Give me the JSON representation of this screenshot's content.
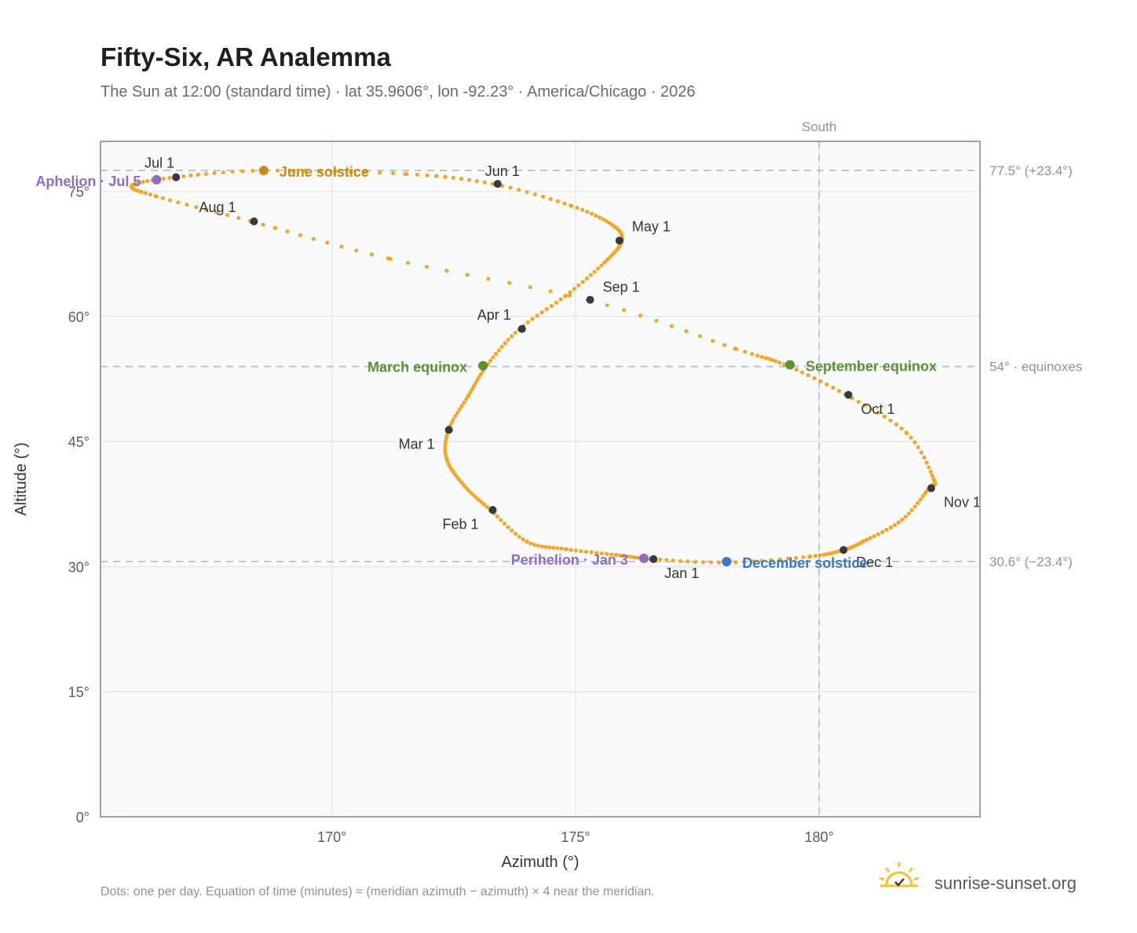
{
  "chart_data": {
    "type": "scatter",
    "title": "Fifty-Six, AR Analemma",
    "subtitle": "The Sun at 12:00 (standard time) · lat 35.9606°, lon -92.23° · America/Chicago · 2026",
    "xlabel": "Azimuth (°)",
    "ylabel": "Altitude (°)",
    "xlim": [
      165.25,
      183.3
    ],
    "ylim": [
      0,
      81
    ],
    "x_ticks": [
      170,
      175,
      180
    ],
    "x_tick_labels": [
      "170°",
      "175°",
      "180°"
    ],
    "y_ticks": [
      0,
      15,
      30,
      45,
      60,
      75
    ],
    "y_tick_labels": [
      "0°",
      "15°",
      "30°",
      "45°",
      "60°",
      "75°"
    ],
    "grid": true,
    "south_line": {
      "azimuth": 180,
      "label": "South"
    },
    "reference_lines": [
      {
        "altitude": 77.5,
        "label": "77.5° (+23.4°)"
      },
      {
        "altitude": 54.0,
        "label": "54° · equinoxes"
      },
      {
        "altitude": 30.6,
        "label": "30.6° (−23.4°)"
      }
    ],
    "series": [
      {
        "color": "#f2a62a",
        "points": [
          [
            176.6,
            30.9
          ],
          [
            175.83,
            31.4
          ],
          [
            174.8,
            32.1
          ],
          [
            174.0,
            33.0
          ],
          [
            173.25,
            36.8
          ],
          [
            172.7,
            39.8
          ],
          [
            172.35,
            43.0
          ],
          [
            172.4,
            46.5
          ],
          [
            172.8,
            50.5
          ],
          [
            173.2,
            54.3
          ],
          [
            173.85,
            58.5
          ],
          [
            174.8,
            62.5
          ],
          [
            175.6,
            66.5
          ],
          [
            175.95,
            69.1
          ],
          [
            175.75,
            71.0
          ],
          [
            174.9,
            73.3
          ],
          [
            173.3,
            75.9
          ],
          [
            171.5,
            77.1
          ],
          [
            168.6,
            77.5
          ],
          [
            166.8,
            76.7
          ],
          [
            165.9,
            75.7
          ],
          [
            166.4,
            74.4
          ],
          [
            168.35,
            71.4
          ],
          [
            171.2,
            66.9
          ],
          [
            175.3,
            61.9
          ],
          [
            178.3,
            56.1
          ],
          [
            179.3,
            54.2
          ],
          [
            180.55,
            50.6
          ],
          [
            181.8,
            46.0
          ],
          [
            182.35,
            40.5
          ],
          [
            182.25,
            39.4
          ],
          [
            181.7,
            35.6
          ],
          [
            180.9,
            33.0
          ],
          [
            180.5,
            32.0
          ],
          [
            179.8,
            31.2
          ],
          [
            178.1,
            30.5
          ],
          [
            176.6,
            30.9
          ]
        ]
      }
    ],
    "month_markers": [
      {
        "label": "Jan 1",
        "az": 176.6,
        "alt": 30.9
      },
      {
        "label": "Feb 1",
        "az": 173.3,
        "alt": 36.8
      },
      {
        "label": "Mar 1",
        "az": 172.4,
        "alt": 46.4
      },
      {
        "label": "Apr 1",
        "az": 173.9,
        "alt": 58.5
      },
      {
        "label": "May 1",
        "az": 175.9,
        "alt": 69.1
      },
      {
        "label": "Jun 1",
        "az": 173.4,
        "alt": 75.9
      },
      {
        "label": "Jul 1",
        "az": 166.8,
        "alt": 76.7
      },
      {
        "label": "Aug 1",
        "az": 168.4,
        "alt": 71.4
      },
      {
        "label": "Sep 1",
        "az": 175.3,
        "alt": 62.0
      },
      {
        "label": "Oct 1",
        "az": 180.6,
        "alt": 50.6
      },
      {
        "label": "Nov 1",
        "az": 182.3,
        "alt": 39.4
      },
      {
        "label": "Dec 1",
        "az": 180.5,
        "alt": 32.0
      }
    ],
    "events": [
      {
        "label": "June solstice",
        "az": 168.6,
        "alt": 77.5,
        "color": "#c98b0c"
      },
      {
        "label": "Aphelion · Jul 5",
        "az": 166.4,
        "alt": 76.4,
        "color": "#8e6cc0"
      },
      {
        "label": "March equinox",
        "az": 173.1,
        "alt": 54.1,
        "color": "#5a9232"
      },
      {
        "label": "September equinox",
        "az": 179.4,
        "alt": 54.2,
        "color": "#5a9232"
      },
      {
        "label": "Perihelion · Jan 3",
        "az": 176.4,
        "alt": 31.0,
        "color": "#8e6cc0"
      },
      {
        "label": "December solstice",
        "az": 178.1,
        "alt": 30.6,
        "color": "#3a78c2"
      }
    ]
  },
  "footnote": "Dots: one per day. Equation of time (minutes) ≈ (meridian azimuth − azimuth) × 4 near the meridian.",
  "brand": {
    "name": "sunrise-sunset.org",
    "icon": "sun-logo-icon"
  },
  "colors": {
    "curve": "#f2a62a",
    "marker": "#333a44",
    "grid": "#e3e8ee",
    "plot_bg": "#f8fafc",
    "frame": "#98a2b0",
    "ref_line": "#b4c0cc"
  }
}
